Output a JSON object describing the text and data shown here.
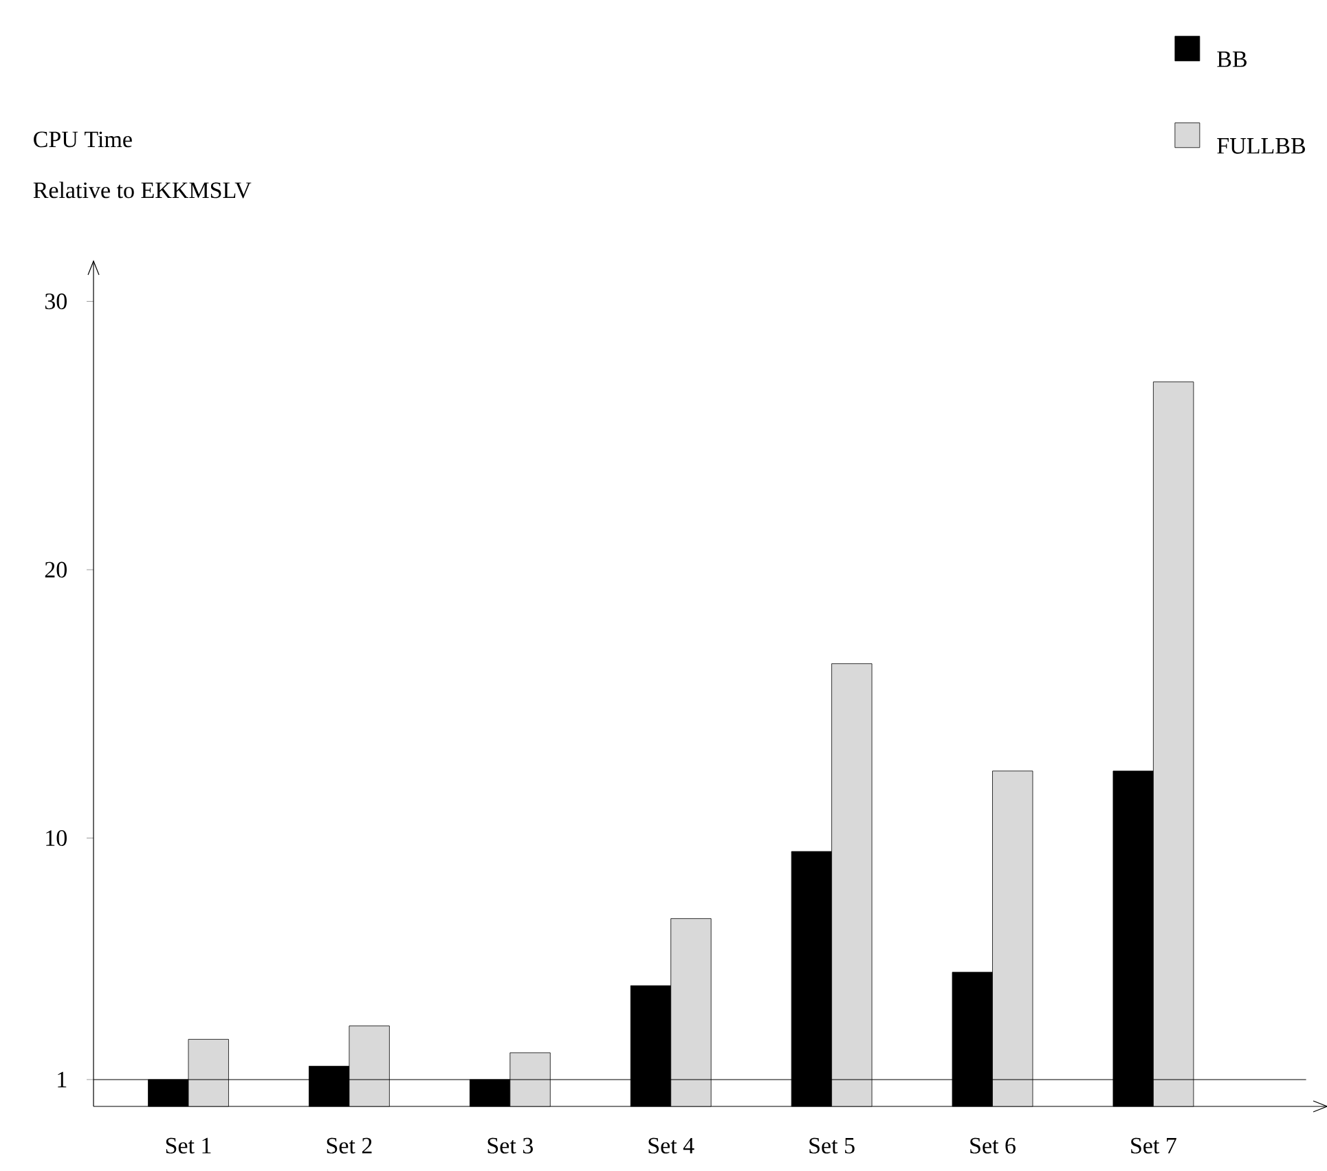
{
  "chart_data": {
    "type": "bar",
    "ylabel": "CPU Time",
    "annotations": [
      "Relative to EKKMSLV"
    ],
    "categories": [
      "Set 1",
      "Set 2",
      "Set 3",
      "Set 4",
      "Set 5",
      "Set 6",
      "Set 7"
    ],
    "series": [
      {
        "name": "BB",
        "color": "#000000",
        "values": [
          1.0,
          1.5,
          1.0,
          4.5,
          9.5,
          5.0,
          12.5
        ]
      },
      {
        "name": "FULLBB",
        "color": "#d9d9d9",
        "values": [
          2.5,
          3.0,
          2.0,
          7.0,
          16.5,
          12.5,
          27.0
        ]
      }
    ],
    "ylim": [
      0,
      31.5
    ],
    "yticks": [
      1,
      10,
      20,
      30
    ],
    "ref_lines": [
      {
        "axis": "y",
        "value": 1
      }
    ],
    "legend": "top right",
    "grid": false
  }
}
